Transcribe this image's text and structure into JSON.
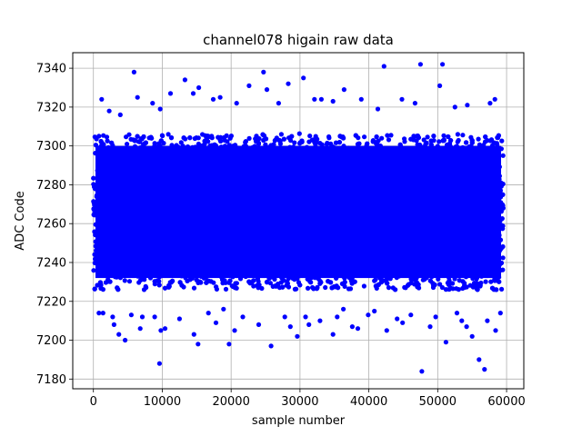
{
  "chart_data": {
    "type": "scatter",
    "title": "channel078 higain raw data",
    "xlabel": "sample number",
    "ylabel": "ADC Code",
    "xlim": [
      -3000,
      62500
    ],
    "ylim": [
      7175,
      7348
    ],
    "xticks": [
      0,
      10000,
      20000,
      30000,
      40000,
      50000,
      60000
    ],
    "xtick_labels": [
      "0",
      "10000",
      "20000",
      "30000",
      "40000",
      "50000",
      "60000"
    ],
    "yticks": [
      7180,
      7200,
      7220,
      7240,
      7260,
      7280,
      7300,
      7320,
      7340
    ],
    "ytick_labels": [
      "7180",
      "7200",
      "7220",
      "7240",
      "7260",
      "7280",
      "7300",
      "7320",
      "7340"
    ],
    "grid": true,
    "marker_color": "#0000ff",
    "series": [
      {
        "x_range": [
          0,
          59500
        ],
        "dense_band": [
          7226,
          7306
        ],
        "points": [
          [
            5900,
            7338
          ],
          [
            24700,
            7338
          ],
          [
            30500,
            7335
          ],
          [
            42200,
            7341
          ],
          [
            47500,
            7342
          ],
          [
            50700,
            7342
          ],
          [
            13300,
            7334
          ],
          [
            15300,
            7330
          ],
          [
            22600,
            7331
          ],
          [
            28300,
            7332
          ],
          [
            50300,
            7331
          ],
          [
            36400,
            7329
          ],
          [
            6400,
            7325
          ],
          [
            8600,
            7322
          ],
          [
            11200,
            7327
          ],
          [
            14500,
            7327
          ],
          [
            17400,
            7324
          ],
          [
            18400,
            7325
          ],
          [
            25200,
            7329
          ],
          [
            32100,
            7324
          ],
          [
            33100,
            7324
          ],
          [
            34800,
            7323
          ],
          [
            38900,
            7324
          ],
          [
            44800,
            7324
          ],
          [
            54300,
            7321
          ],
          [
            57600,
            7322
          ],
          [
            58300,
            7324
          ],
          [
            1200,
            7324
          ],
          [
            2300,
            7318
          ],
          [
            20800,
            7322
          ],
          [
            26900,
            7322
          ],
          [
            41300,
            7319
          ],
          [
            46700,
            7322
          ],
          [
            52500,
            7320
          ],
          [
            3900,
            7316
          ],
          [
            9700,
            7319
          ],
          [
            9600,
            7188
          ],
          [
            47700,
            7184
          ],
          [
            56800,
            7185
          ],
          [
            56000,
            7190
          ],
          [
            25800,
            7197
          ],
          [
            15200,
            7198
          ],
          [
            29600,
            7202
          ],
          [
            34800,
            7203
          ],
          [
            51200,
            7199
          ],
          [
            3700,
            7203
          ],
          [
            4600,
            7200
          ],
          [
            19700,
            7198
          ],
          [
            55000,
            7202
          ],
          [
            58400,
            7205
          ],
          [
            9800,
            7205
          ],
          [
            10400,
            7206
          ],
          [
            14600,
            7203
          ],
          [
            20500,
            7205
          ],
          [
            28600,
            7207
          ],
          [
            31300,
            7208
          ],
          [
            37600,
            7207
          ],
          [
            38400,
            7206
          ],
          [
            42600,
            7205
          ],
          [
            44900,
            7209
          ],
          [
            48900,
            7207
          ],
          [
            54200,
            7207
          ],
          [
            3000,
            7208
          ],
          [
            6800,
            7206
          ],
          [
            17800,
            7209
          ],
          [
            24000,
            7208
          ],
          [
            800,
            7214
          ],
          [
            1400,
            7214
          ],
          [
            2800,
            7212
          ],
          [
            5500,
            7213
          ],
          [
            7100,
            7212
          ],
          [
            8900,
            7212
          ],
          [
            12500,
            7211
          ],
          [
            16700,
            7214
          ],
          [
            21700,
            7212
          ],
          [
            27800,
            7212
          ],
          [
            30800,
            7212
          ],
          [
            35400,
            7212
          ],
          [
            39900,
            7213
          ],
          [
            44100,
            7211
          ],
          [
            46100,
            7213
          ],
          [
            49700,
            7212
          ],
          [
            52800,
            7214
          ],
          [
            59100,
            7214
          ],
          [
            18900,
            7216
          ],
          [
            36300,
            7216
          ],
          [
            40800,
            7215
          ],
          [
            53500,
            7210
          ],
          [
            57200,
            7210
          ],
          [
            32900,
            7210
          ]
        ]
      }
    ]
  }
}
